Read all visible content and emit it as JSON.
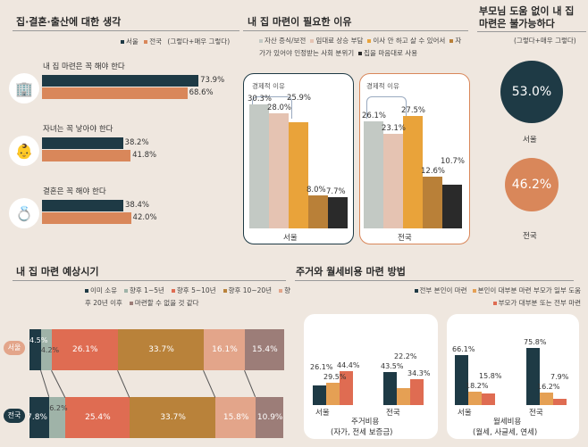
{
  "colors": {
    "seoul": "#1e3a45",
    "national": "#d9875a"
  },
  "chart_data": [
    {
      "type": "bar",
      "title": "집·결혼·출산에 대한 생각",
      "legend": [
        "서울",
        "전국"
      ],
      "legend_note": "(그렇다+매우 그렇다)",
      "categories": [
        "내 집 마련은 꼭 해야 한다",
        "자녀는 꼭 낳아야 한다",
        "결혼은 꼭 해야 한다"
      ],
      "icons": [
        "building-icon",
        "baby-icon",
        "rings-icon"
      ],
      "series": [
        {
          "name": "서울",
          "values": [
            73.9,
            38.2,
            38.4
          ],
          "labels": [
            "73.9%",
            "38.2%",
            "38.4%"
          ]
        },
        {
          "name": "전국",
          "values": [
            68.6,
            41.8,
            42.0
          ],
          "labels": [
            "68.6%",
            "41.8%",
            "42.0%"
          ]
        }
      ]
    },
    {
      "type": "bar",
      "title": "내 집 마련이 필요한 이유",
      "legend": [
        {
          "name": "자산 증식/보전",
          "color": "#c3c9c4"
        },
        {
          "name": "임대료 상승 부담",
          "color": "#e5c3b2"
        },
        {
          "name": "이사 안 하고 살 수 있어서",
          "color": "#e9a33a"
        },
        {
          "name": "자가가 있어야 인정받는 사회 분위기",
          "color": "#b98038"
        },
        {
          "name": "집을 마음대로 사용",
          "color": "#2a2a2a"
        }
      ],
      "annotation": "경제적 이유",
      "groups": [
        {
          "name": "서울",
          "values": [
            30.3,
            28.0,
            25.9,
            8.0,
            7.7
          ],
          "labels": [
            "30.3%",
            "28.0%",
            "25.9%",
            "8.0%",
            "7.7%"
          ]
        },
        {
          "name": "전국",
          "values": [
            26.1,
            23.1,
            27.5,
            12.6,
            10.7
          ],
          "labels": [
            "26.1%",
            "23.1%",
            "27.5%",
            "12.6%",
            "10.7%"
          ]
        }
      ]
    },
    {
      "type": "bar",
      "title": "부모님 도움 없이 내 집 마련은 불가능하다",
      "note": "(그렇다+매우 그렇다)",
      "items": [
        {
          "name": "서울",
          "value": 53.0,
          "label": "53.0%"
        },
        {
          "name": "전국",
          "value": 46.2,
          "label": "46.2%"
        }
      ]
    },
    {
      "type": "bar",
      "stacked": true,
      "title": "내 집 마련 예상시기",
      "legend": [
        {
          "name": "이미 소유",
          "color": "#1e3a45"
        },
        {
          "name": "향후 1~5년",
          "color": "#9fb3a8"
        },
        {
          "name": "향후 5~10년",
          "color": "#df6c52"
        },
        {
          "name": "향후 10~20년",
          "color": "#b9823a"
        },
        {
          "name": "향후 20년 이후",
          "color": "#e3a58a"
        },
        {
          "name": "마련할 수 없을 것 같다",
          "color": "#9c7d78"
        }
      ],
      "groups": [
        {
          "name": "서울",
          "values": [
            4.5,
            4.2,
            26.1,
            33.7,
            16.1,
            15.4
          ],
          "labels": [
            "4.5%",
            "4.2%",
            "26.1%",
            "33.7%",
            "16.1%",
            "15.4%"
          ]
        },
        {
          "name": "전국",
          "values": [
            7.8,
            6.2,
            25.4,
            33.7,
            15.8,
            10.9
          ],
          "labels": [
            "7.8%",
            "6.2%",
            "25.4%",
            "33.7%",
            "15.8%",
            "10.9%"
          ]
        }
      ]
    },
    {
      "type": "bar",
      "title": "주거와 월세비용 마련 방법",
      "legend": [
        {
          "name": "전부 본인이 마련",
          "color": "#1e3a45"
        },
        {
          "name": "본인이 대부분 마련 부모가 일부 도움",
          "color": "#e5a054"
        },
        {
          "name": "부모가 대부분 또는 전부 마련",
          "color": "#df6c52"
        }
      ],
      "panels": [
        {
          "title": "주거비용",
          "subtitle": "(자가, 전세 보증금)",
          "groups": [
            {
              "name": "서울",
              "values": [
                26.1,
                29.5,
                44.4
              ],
              "labels": [
                "26.1%",
                "29.5%",
                "44.4%"
              ]
            },
            {
              "name": "전국",
              "values": [
                43.5,
                22.2,
                34.3
              ],
              "labels": [
                "43.5%",
                "22.2%",
                "34.3%"
              ]
            }
          ]
        },
        {
          "title": "월세비용",
          "subtitle": "(월세, 사글세, 연세)",
          "groups": [
            {
              "name": "서울",
              "values": [
                66.1,
                18.2,
                15.8
              ],
              "labels": [
                "66.1%",
                "18.2%",
                "15.8%"
              ]
            },
            {
              "name": "전국",
              "values": [
                75.8,
                16.2,
                7.9
              ],
              "labels": [
                "75.8%",
                "16.2%",
                "7.9%"
              ]
            }
          ]
        }
      ]
    }
  ]
}
